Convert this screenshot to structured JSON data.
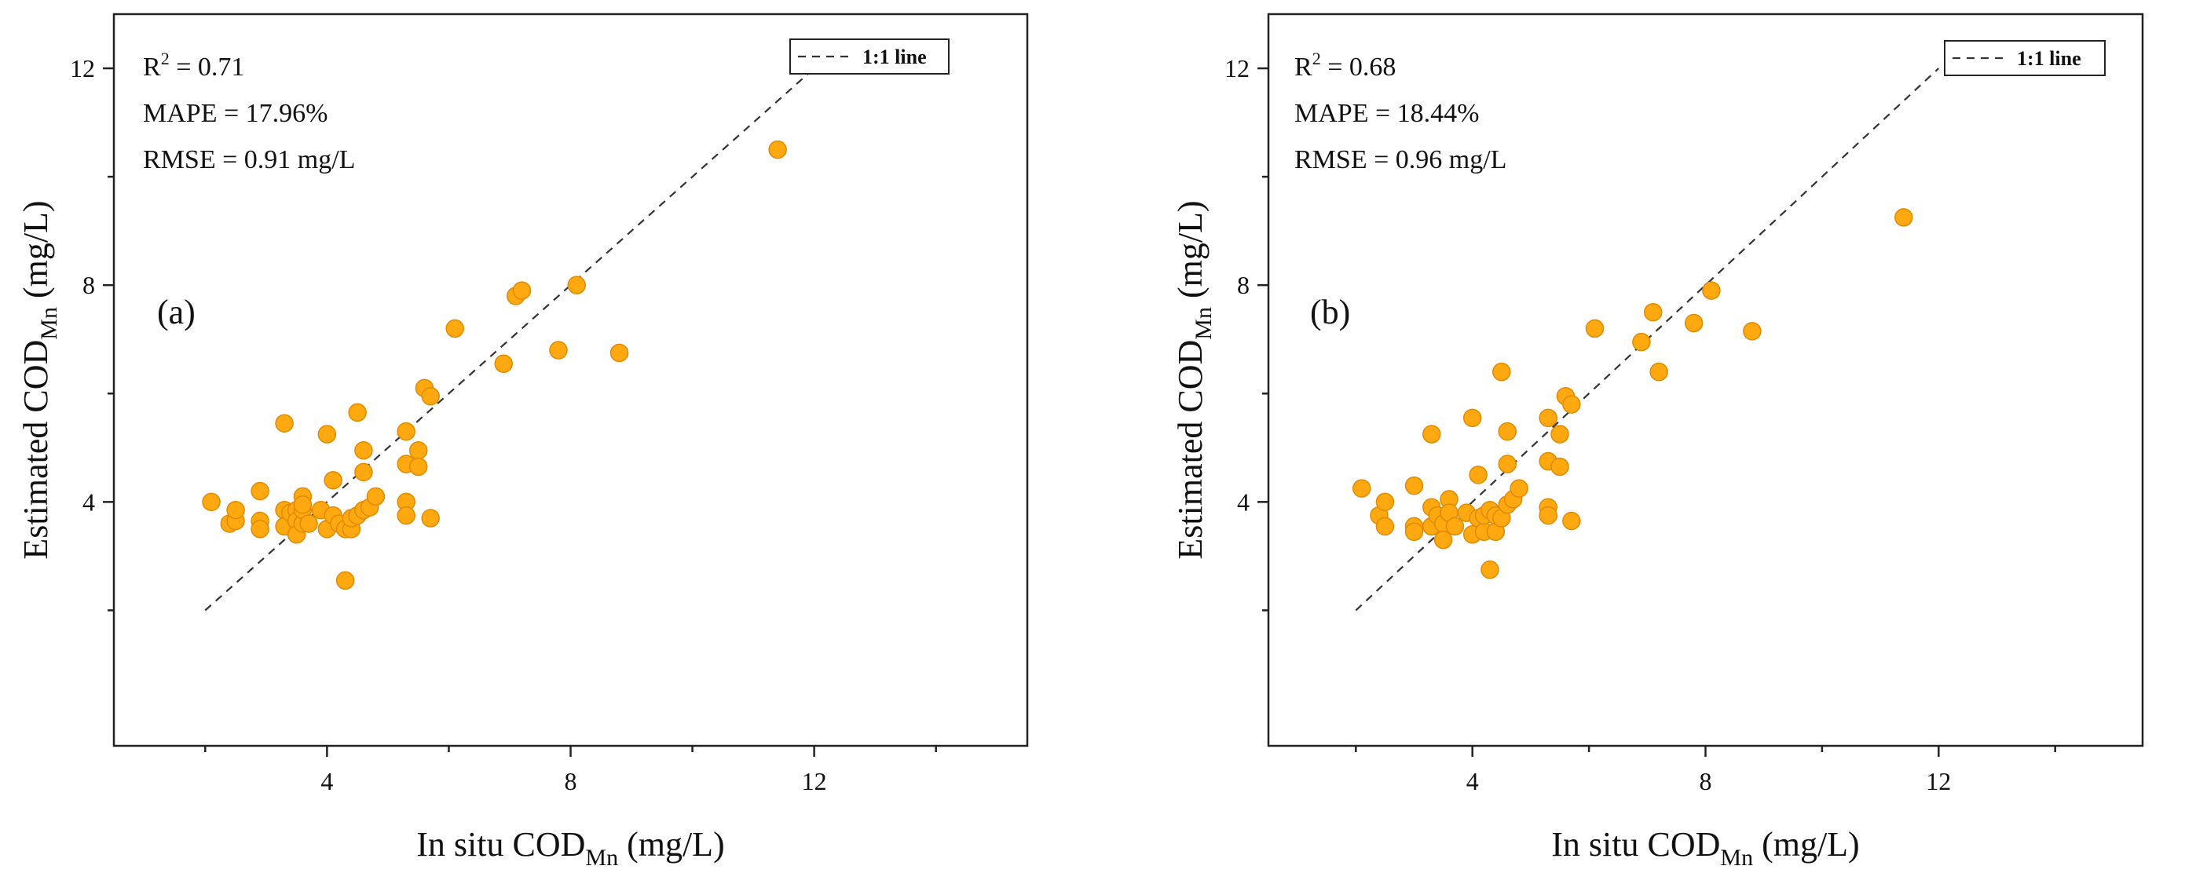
{
  "figure": {
    "colors": {
      "point_fill": "#FFA80F",
      "point_stroke": "#E08A00",
      "axis": "#222222"
    }
  },
  "chart_data": [
    {
      "panel": "a",
      "type": "scatter",
      "panel_label": "(a)",
      "xlabel": {
        "main": "In situ COD",
        "sub": "Mn",
        "unit": " (mg/L)"
      },
      "ylabel": {
        "main": "Estimated COD",
        "sub": "Mn",
        "unit": " (mg/L)"
      },
      "xlim": [
        0.5,
        15.5
      ],
      "ylim": [
        -0.5,
        13
      ],
      "xticks": [
        4,
        8,
        12
      ],
      "yticks": [
        4,
        8,
        12
      ],
      "stats": {
        "r2_label": "R",
        "r2_sup": "2",
        "r2_value": " = 0.71",
        "mape": "MAPE = 17.96%",
        "rmse": "RMSE = 0.91 mg/L"
      },
      "legend": {
        "label": "1:1 line",
        "position": "top-right"
      },
      "reference_line": {
        "x": [
          2,
          12
        ],
        "y": [
          2,
          12
        ]
      },
      "points": [
        [
          2.1,
          4.0
        ],
        [
          2.4,
          3.6
        ],
        [
          2.5,
          3.65
        ],
        [
          2.5,
          3.85
        ],
        [
          2.9,
          4.2
        ],
        [
          2.9,
          3.65
        ],
        [
          2.9,
          3.5
        ],
        [
          3.3,
          3.85
        ],
        [
          3.3,
          3.55
        ],
        [
          3.3,
          5.45
        ],
        [
          3.4,
          3.8
        ],
        [
          3.5,
          3.85
        ],
        [
          3.5,
          3.65
        ],
        [
          3.5,
          3.4
        ],
        [
          3.6,
          3.6
        ],
        [
          3.6,
          3.85
        ],
        [
          3.6,
          4.1
        ],
        [
          3.6,
          3.95
        ],
        [
          3.7,
          3.6
        ],
        [
          3.9,
          3.85
        ],
        [
          4.0,
          5.25
        ],
        [
          4.0,
          3.5
        ],
        [
          4.1,
          4.4
        ],
        [
          4.1,
          3.75
        ],
        [
          4.2,
          3.6
        ],
        [
          4.3,
          3.5
        ],
        [
          4.3,
          2.55
        ],
        [
          4.4,
          3.5
        ],
        [
          4.4,
          3.7
        ],
        [
          4.5,
          3.75
        ],
        [
          4.5,
          5.65
        ],
        [
          4.6,
          3.85
        ],
        [
          4.6,
          4.55
        ],
        [
          4.6,
          4.95
        ],
        [
          4.7,
          3.9
        ],
        [
          4.8,
          4.1
        ],
        [
          5.3,
          5.3
        ],
        [
          5.3,
          4.7
        ],
        [
          5.3,
          4.0
        ],
        [
          5.3,
          3.75
        ],
        [
          5.5,
          4.95
        ],
        [
          5.5,
          4.65
        ],
        [
          5.6,
          6.1
        ],
        [
          5.7,
          5.95
        ],
        [
          5.7,
          3.7
        ],
        [
          6.1,
          7.2
        ],
        [
          6.9,
          6.55
        ],
        [
          7.1,
          7.8
        ],
        [
          7.2,
          7.9
        ],
        [
          7.8,
          6.8
        ],
        [
          8.1,
          8.0
        ],
        [
          8.8,
          6.75
        ],
        [
          11.4,
          10.5
        ]
      ]
    },
    {
      "panel": "b",
      "type": "scatter",
      "panel_label": "(b)",
      "xlabel": {
        "main": "In situ COD",
        "sub": "Mn",
        "unit": " (mg/L)"
      },
      "ylabel": {
        "main": "Estimated COD",
        "sub": "Mn",
        "unit": " (mg/L)"
      },
      "xlim": [
        0.5,
        15.5
      ],
      "ylim": [
        -0.5,
        13
      ],
      "xticks": [
        4,
        8,
        12
      ],
      "yticks": [
        4,
        8,
        12
      ],
      "stats": {
        "r2_label": "R",
        "r2_sup": "2",
        "r2_value": " = 0.68",
        "mape": "MAPE = 18.44%",
        "rmse": "RMSE = 0.96 mg/L"
      },
      "legend": {
        "label": "1:1 line",
        "position": "top-right"
      },
      "reference_line": {
        "x": [
          2,
          12
        ],
        "y": [
          2,
          12
        ]
      },
      "points": [
        [
          2.1,
          4.25
        ],
        [
          2.4,
          3.75
        ],
        [
          2.5,
          3.55
        ],
        [
          2.5,
          4.0
        ],
        [
          3.0,
          4.3
        ],
        [
          3.0,
          3.55
        ],
        [
          3.0,
          3.45
        ],
        [
          3.3,
          5.25
        ],
        [
          3.3,
          3.9
        ],
        [
          3.3,
          3.55
        ],
        [
          3.4,
          3.75
        ],
        [
          3.5,
          3.6
        ],
        [
          3.5,
          3.3
        ],
        [
          3.6,
          3.8
        ],
        [
          3.6,
          4.05
        ],
        [
          3.6,
          3.8
        ],
        [
          3.7,
          3.55
        ],
        [
          3.9,
          3.8
        ],
        [
          4.0,
          5.55
        ],
        [
          4.0,
          3.4
        ],
        [
          4.1,
          4.5
        ],
        [
          4.1,
          3.7
        ],
        [
          4.2,
          3.45
        ],
        [
          4.2,
          3.75
        ],
        [
          4.3,
          2.75
        ],
        [
          4.3,
          3.85
        ],
        [
          4.4,
          3.45
        ],
        [
          4.4,
          3.75
        ],
        [
          4.5,
          6.4
        ],
        [
          4.5,
          3.7
        ],
        [
          4.6,
          5.3
        ],
        [
          4.6,
          4.7
        ],
        [
          4.6,
          3.95
        ],
        [
          4.7,
          4.05
        ],
        [
          4.8,
          4.25
        ],
        [
          5.3,
          5.55
        ],
        [
          5.3,
          4.75
        ],
        [
          5.3,
          3.9
        ],
        [
          5.3,
          3.75
        ],
        [
          5.5,
          5.25
        ],
        [
          5.5,
          4.65
        ],
        [
          5.6,
          5.95
        ],
        [
          5.7,
          5.8
        ],
        [
          5.7,
          3.65
        ],
        [
          6.1,
          7.2
        ],
        [
          6.9,
          6.95
        ],
        [
          7.1,
          7.5
        ],
        [
          7.2,
          6.4
        ],
        [
          7.8,
          7.3
        ],
        [
          8.1,
          7.9
        ],
        [
          8.8,
          7.15
        ],
        [
          11.4,
          9.25
        ]
      ]
    }
  ]
}
